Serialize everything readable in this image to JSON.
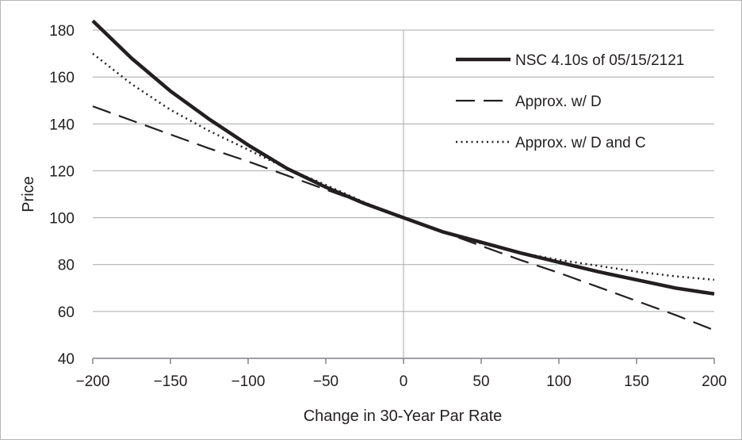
{
  "chart_data": {
    "type": "line",
    "title": "",
    "xlabel": "Change in 30-Year Par Rate",
    "ylabel": "Price",
    "xlim": [
      -200,
      200
    ],
    "ylim": [
      40,
      180
    ],
    "x_ticks": [
      -200,
      -150,
      -100,
      -50,
      0,
      50,
      100,
      150,
      200
    ],
    "x_tick_labels": [
      "−200",
      "−150",
      "−100",
      "−50",
      "0",
      "50",
      "100",
      "150",
      "200"
    ],
    "y_ticks": [
      40,
      60,
      80,
      100,
      120,
      140,
      160,
      180
    ],
    "grid": "horizontal",
    "legend_position": "top-right",
    "x": [
      -200,
      -175,
      -150,
      -125,
      -100,
      -75,
      -50,
      -25,
      0,
      25,
      50,
      75,
      100,
      125,
      150,
      175,
      200
    ],
    "series": [
      {
        "name": "NSC 4.10s of 05/15/2121",
        "style": "solid",
        "color": "#231f20",
        "values": [
          184,
          168,
          154,
          142,
          131,
          121,
          113,
          106,
          100,
          94,
          89.5,
          85,
          81,
          77,
          73.5,
          70,
          67.5
        ]
      },
      {
        "name": "Approx. w/ D",
        "style": "dashed",
        "color": "#231f20",
        "values": [
          147.5,
          141.5,
          135.5,
          129.5,
          124,
          118,
          112,
          106,
          100,
          94,
          88,
          82,
          76.5,
          70.5,
          64.5,
          58.5,
          52
        ]
      },
      {
        "name": "Approx. w/ D and C",
        "style": "dotted",
        "color": "#231f20",
        "values": [
          170,
          157,
          146,
          137,
          129,
          121,
          114,
          106.5,
          100,
          94,
          89,
          85,
          82,
          79.5,
          77,
          75,
          73.5
        ]
      }
    ]
  }
}
